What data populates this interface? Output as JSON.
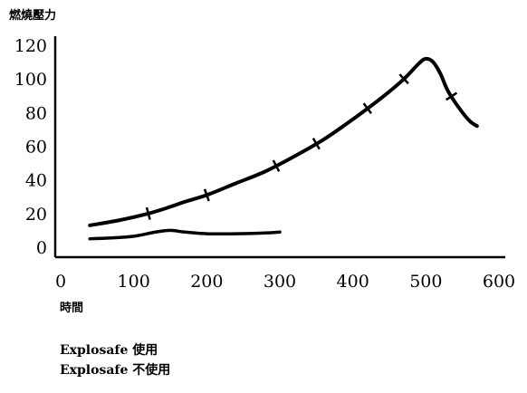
{
  "chart_data": {
    "type": "line",
    "ylabel": "燃燒壓力",
    "xlabel": "時間",
    "xlim": [
      0,
      600
    ],
    "ylim": [
      0,
      120
    ],
    "x_ticks": [
      "0",
      "100",
      "200",
      "300",
      "400",
      "500",
      "600"
    ],
    "y_ticks": [
      "0",
      "20",
      "40",
      "60",
      "80",
      "100",
      "120"
    ],
    "grid": false,
    "legend_position": "bottom-left",
    "series": [
      {
        "name": "Explosafe 使用",
        "x": [
          40,
          80,
          120,
          150,
          170,
          200,
          240,
          280,
          320,
          360,
          400,
          440,
          470,
          490,
          500,
          510,
          520,
          530,
          545,
          560,
          570
        ],
        "y": [
          13,
          16,
          20,
          24,
          27,
          31,
          38,
          45,
          54,
          64,
          76,
          89,
          100,
          109,
          112,
          110,
          103,
          93,
          83,
          75,
          72
        ],
        "ticks_at": [
          120,
          200,
          295,
          350,
          420,
          470,
          535
        ],
        "color": "#000000"
      },
      {
        "name": "Explosafe 不使用",
        "x": [
          40,
          70,
          100,
          130,
          150,
          170,
          200,
          240,
          280,
          300
        ],
        "y": [
          5,
          5.5,
          6.5,
          9,
          10,
          9,
          8,
          8,
          8.5,
          9
        ],
        "color": "#000000"
      }
    ]
  },
  "legend": {
    "items": [
      "Explosafe 使用",
      "Explosafe 不使用"
    ]
  }
}
